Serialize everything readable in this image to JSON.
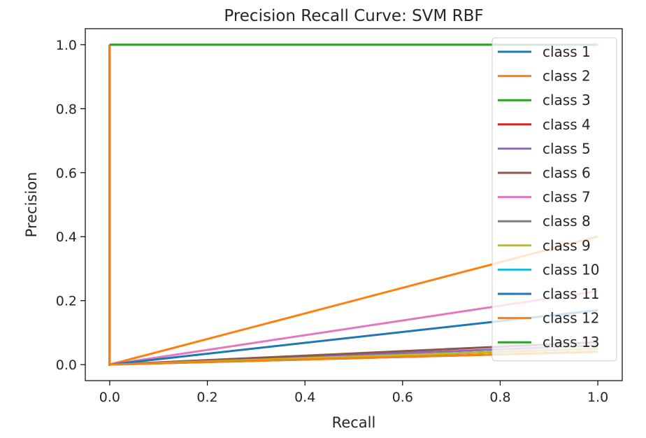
{
  "chart_data": {
    "type": "line",
    "title": "Precision Recall Curve: SVM RBF",
    "xlabel": "Recall",
    "ylabel": "Precision",
    "xlim": [
      -0.05,
      1.05
    ],
    "ylim": [
      -0.05,
      1.05
    ],
    "xticks": [
      0.0,
      0.2,
      0.4,
      0.6,
      0.8,
      1.0
    ],
    "xtick_labels": [
      "0.0",
      "0.2",
      "0.4",
      "0.6",
      "0.8",
      "1.0"
    ],
    "yticks": [
      0.0,
      0.2,
      0.4,
      0.6,
      0.8,
      1.0
    ],
    "ytick_labels": [
      "0.0",
      "0.2",
      "0.4",
      "0.6",
      "0.8",
      "1.0"
    ],
    "grid": false,
    "legend_position": "top-right",
    "series": [
      {
        "name": "class 1",
        "color": "#1f77b4",
        "x": [
          0,
          0,
          1
        ],
        "y": [
          1,
          0,
          0.05
        ]
      },
      {
        "name": "class 2",
        "color": "#ff7f0e",
        "x": [
          0,
          0,
          1
        ],
        "y": [
          1,
          0,
          0.4
        ]
      },
      {
        "name": "class 3",
        "color": "#2ca02c",
        "x": [
          0,
          0,
          1
        ],
        "y": [
          1,
          1,
          1.0
        ]
      },
      {
        "name": "class 4",
        "color": "#d62728",
        "x": [
          0,
          0,
          1
        ],
        "y": [
          1,
          0,
          0.05
        ]
      },
      {
        "name": "class 5",
        "color": "#9467bd",
        "x": [
          0,
          0,
          1
        ],
        "y": [
          1,
          0,
          0.06
        ]
      },
      {
        "name": "class 6",
        "color": "#8c564b",
        "x": [
          0,
          0,
          1
        ],
        "y": [
          1,
          0,
          0.07
        ]
      },
      {
        "name": "class 7",
        "color": "#e377c2",
        "x": [
          0,
          0,
          1
        ],
        "y": [
          1,
          0,
          0.23
        ]
      },
      {
        "name": "class 8",
        "color": "#7f7f7f",
        "x": [
          0,
          0,
          1
        ],
        "y": [
          1,
          0,
          0.04
        ]
      },
      {
        "name": "class 9",
        "color": "#bcbd22",
        "x": [
          0,
          0,
          1
        ],
        "y": [
          1,
          0,
          0.05
        ]
      },
      {
        "name": "class 10",
        "color": "#17becf",
        "x": [
          0,
          0,
          1
        ],
        "y": [
          1,
          0,
          0.04
        ]
      },
      {
        "name": "class 11",
        "color": "#1f77b4",
        "x": [
          0,
          0,
          1
        ],
        "y": [
          1,
          0,
          0.17
        ]
      },
      {
        "name": "class 12",
        "color": "#ff7f0e",
        "x": [
          0,
          0,
          1
        ],
        "y": [
          1,
          0,
          0.04
        ]
      },
      {
        "name": "class 13",
        "color": "#2ca02c",
        "x": [
          0,
          0,
          1
        ],
        "y": [
          1,
          1,
          1.0
        ]
      }
    ]
  }
}
